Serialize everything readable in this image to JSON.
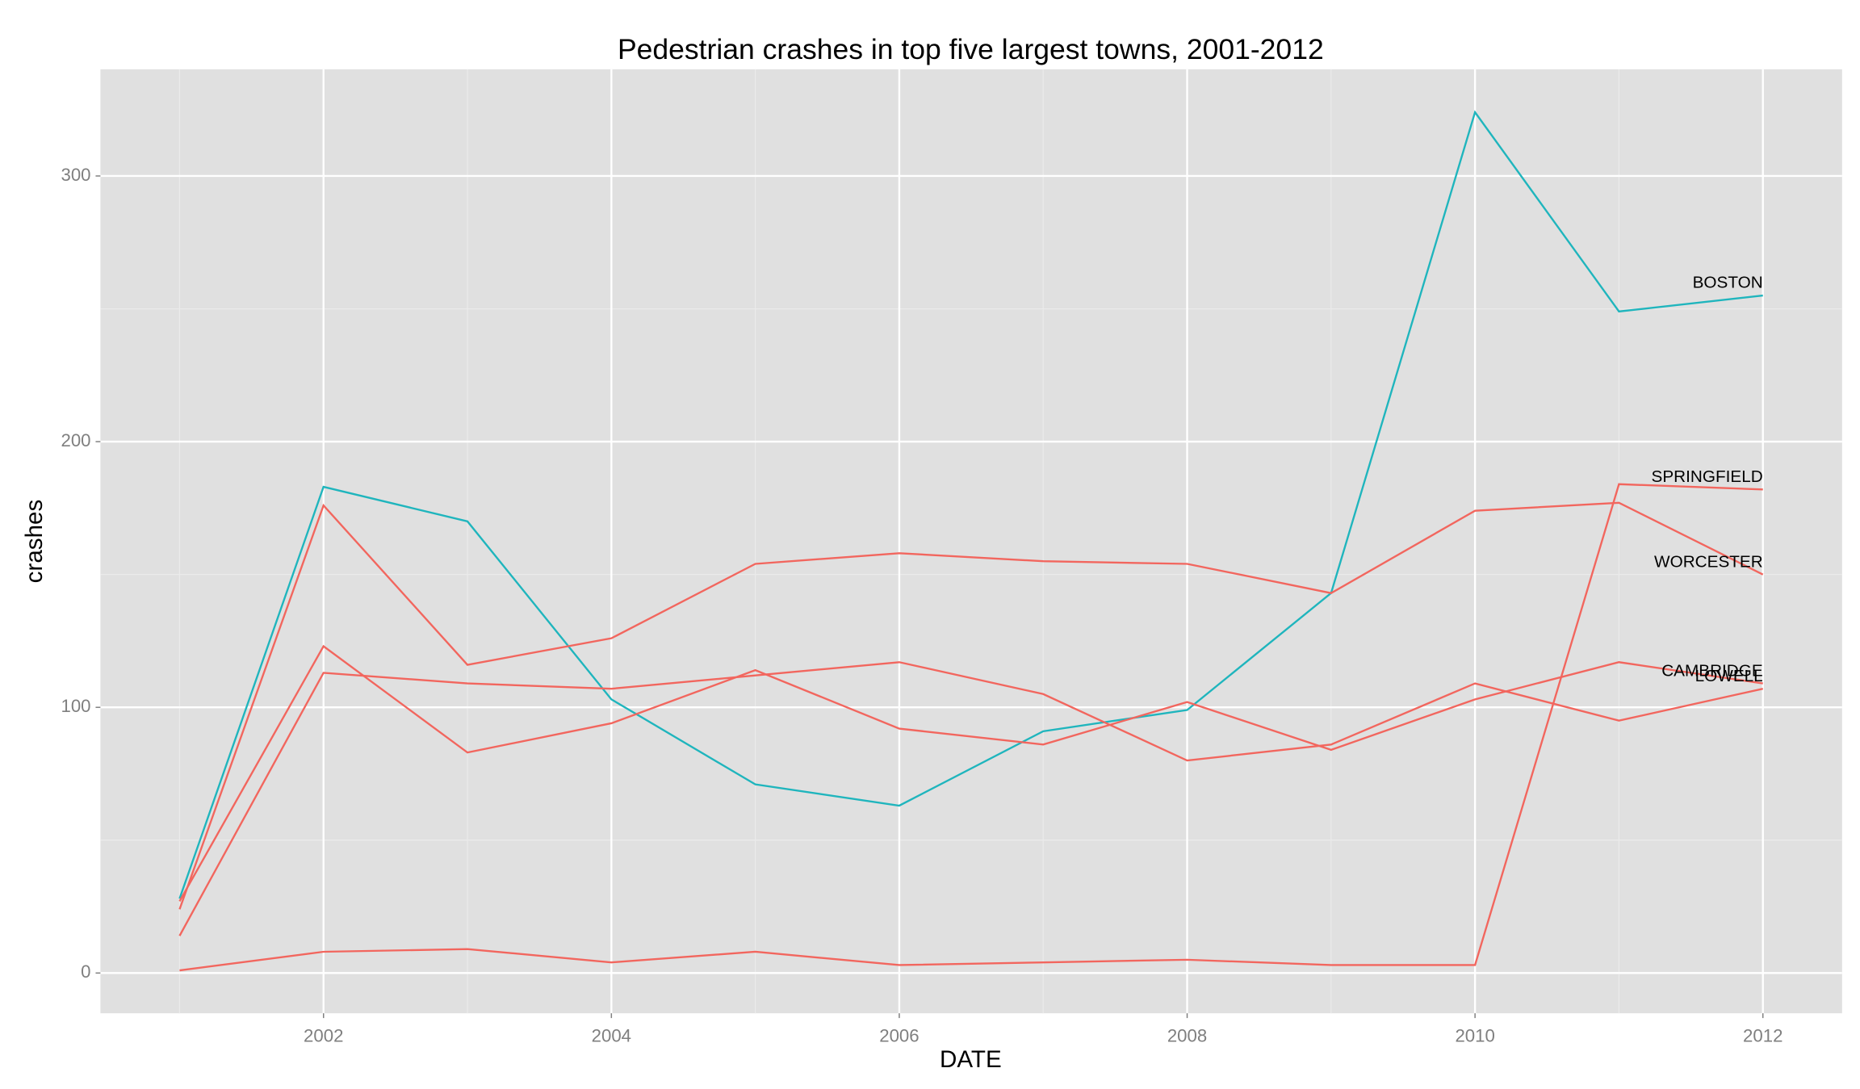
{
  "chart_data": {
    "type": "line",
    "title": "Pedestrian crashes in top five largest towns, 2001-2012",
    "x_label": "DATE",
    "y_label": "crashes",
    "x": [
      2001,
      2002,
      2003,
      2004,
      2005,
      2006,
      2007,
      2008,
      2009,
      2010,
      2011,
      2012
    ],
    "series": [
      {
        "name": "BOSTON",
        "color": "#1fb5bd",
        "values": [
          28,
          183,
          170,
          103,
          71,
          63,
          91,
          99,
          143,
          324,
          249,
          255
        ]
      },
      {
        "name": "SPRINGFIELD",
        "color": "#f2665e",
        "values": [
          1,
          8,
          9,
          4,
          8,
          3,
          4,
          5,
          3,
          3,
          184,
          182
        ]
      },
      {
        "name": "WORCESTER",
        "color": "#f2665e",
        "values": [
          24,
          176,
          116,
          126,
          154,
          158,
          155,
          154,
          143,
          174,
          177,
          150
        ]
      },
      {
        "name": "CAMBRIDGE",
        "color": "#f2665e",
        "values": [
          27,
          123,
          83,
          94,
          114,
          92,
          86,
          102,
          84,
          103,
          117,
          109
        ]
      },
      {
        "name": "LOWELL",
        "color": "#f2665e",
        "values": [
          14,
          113,
          109,
          107,
          112,
          117,
          105,
          80,
          86,
          109,
          95,
          107
        ]
      }
    ],
    "xlim": [
      2000.45,
      2012.55
    ],
    "xticks": [
      2002,
      2004,
      2006,
      2008,
      2010,
      2012
    ],
    "ylim": [
      -15.15,
      340.15
    ],
    "yticks": [
      0,
      100,
      200,
      300
    ],
    "grid": true,
    "legend": false
  }
}
